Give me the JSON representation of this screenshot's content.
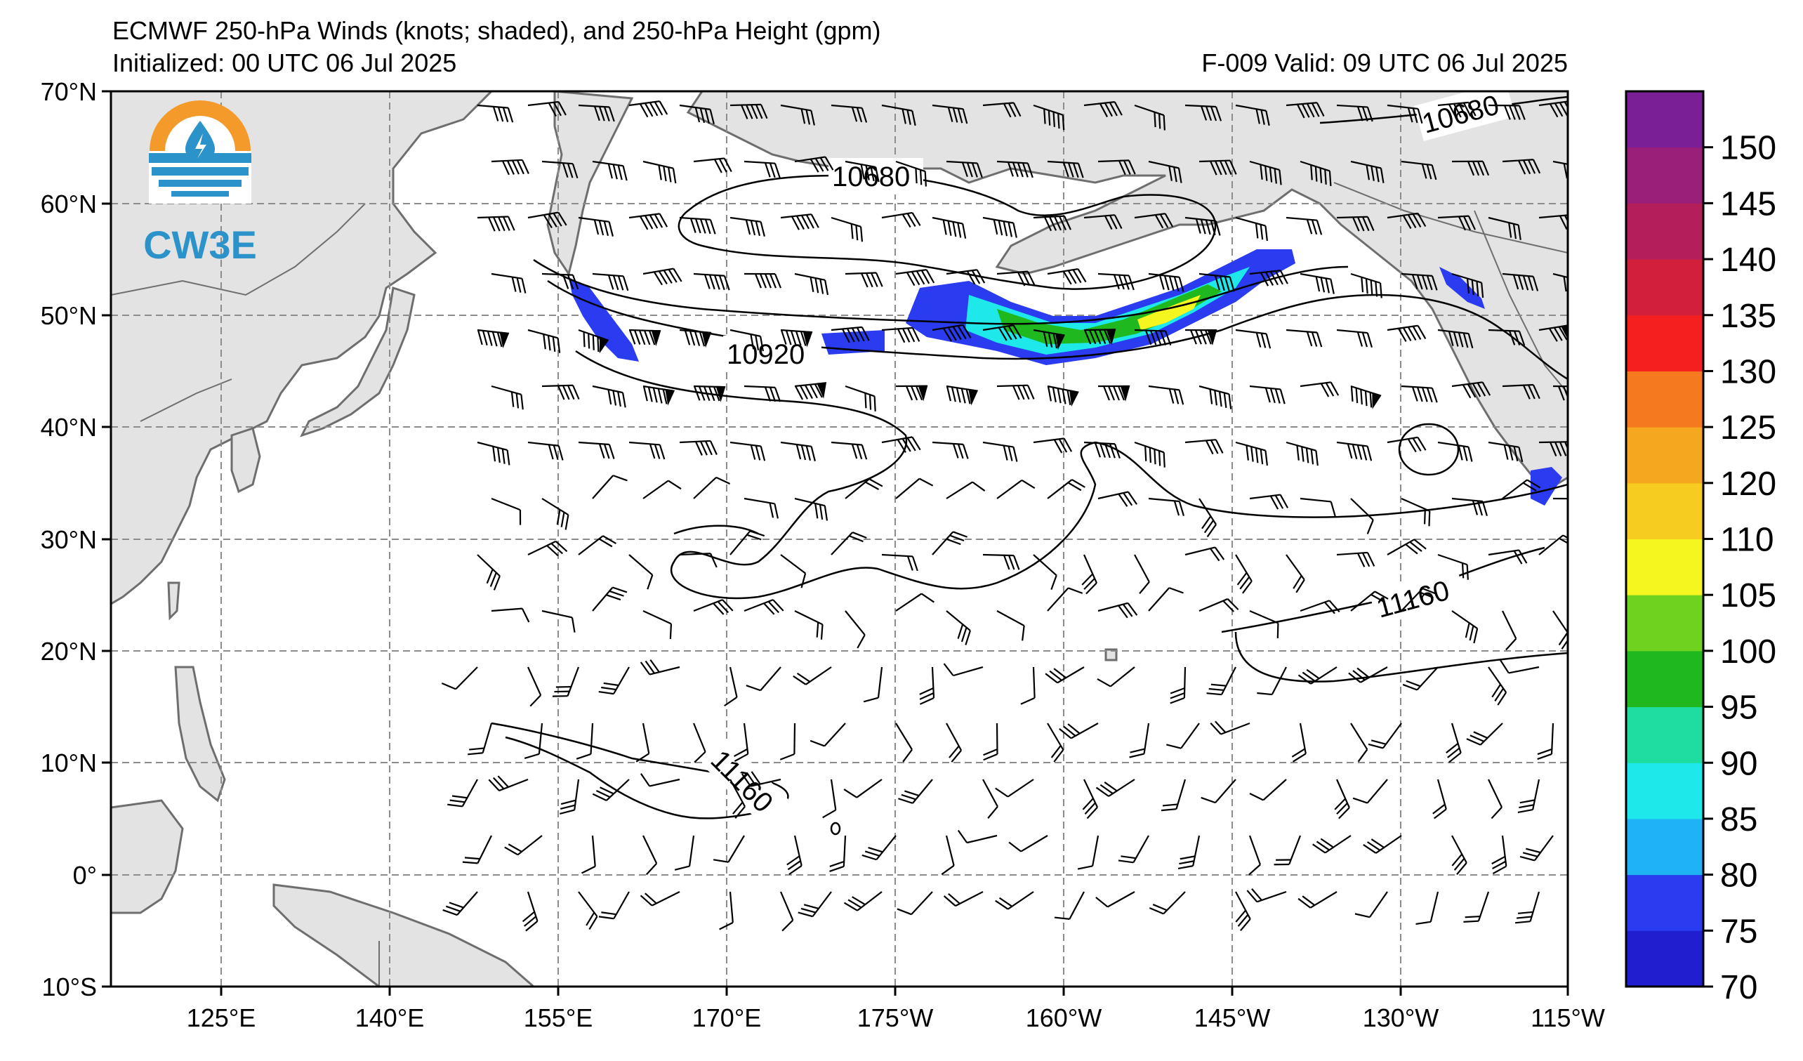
{
  "header": {
    "title": "ECMWF 250-hPa Winds (knots; shaded), and 250-hPa Height (gpm)",
    "initialized": "Initialized: 00 UTC 06 Jul 2025",
    "valid": "F-009  Valid: 09 UTC 06 Jul 2025"
  },
  "logo": {
    "text": "CW3E"
  },
  "axes": {
    "lat_labels": [
      "70°N",
      "60°N",
      "50°N",
      "40°N",
      "30°N",
      "20°N",
      "10°N",
      "0°",
      "10°S"
    ],
    "lon_labels": [
      "125°E",
      "140°E",
      "155°E",
      "170°E",
      "175°W",
      "160°W",
      "145°W",
      "130°W",
      "115°W"
    ]
  },
  "contour_labels": [
    "10680",
    "10680",
    "10920",
    "11160",
    "11160"
  ],
  "colorbar": {
    "labels": [
      "70",
      "75",
      "80",
      "85",
      "90",
      "95",
      "100",
      "105",
      "110",
      "120",
      "125",
      "130",
      "135",
      "140",
      "145",
      "150"
    ],
    "colors": [
      "#1f1fd0",
      "#2a3bf0",
      "#1fb2f5",
      "#1ee8ea",
      "#1fdca0",
      "#1fb91f",
      "#6fd21f",
      "#f5f51f",
      "#f5cc1f",
      "#f5a81f",
      "#f57a1f",
      "#f51f1f",
      "#d21f3c",
      "#b41f5a",
      "#9a1f78",
      "#7a1f96"
    ]
  },
  "map_colors": {
    "land": "#e3e3e3",
    "ocean": "#ffffff",
    "coast": "#6e6e6e",
    "grid": "#8c8c8c"
  }
}
